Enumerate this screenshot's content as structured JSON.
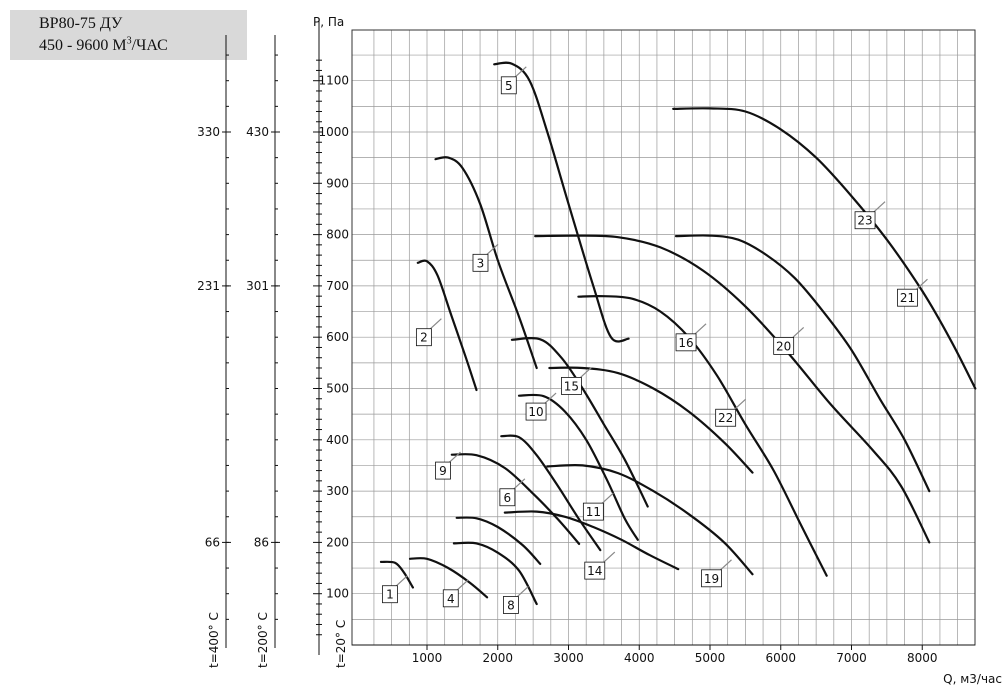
{
  "title_box": {
    "line1": "ВР80-75 ДУ",
    "line2_main": "450 - 9600 М",
    "line2_sup": "3",
    "line2_end": "/ЧАС"
  },
  "chart_data": {
    "type": "line",
    "ylabel": "P, Па",
    "xlabel": "Q, м3/час",
    "xlim": [
      0,
      8750
    ],
    "ylim": [
      0,
      1200
    ],
    "x_ticks": [
      1000,
      2000,
      3000,
      4000,
      5000,
      6000,
      7000,
      8000
    ],
    "y_ticks": [
      100,
      200,
      300,
      400,
      500,
      600,
      700,
      800,
      900,
      1000,
      1100
    ],
    "aux_axes": [
      {
        "label": "t=200° C",
        "ticks": [
          {
            "at": 200,
            "text": "86"
          },
          {
            "at": 700,
            "text": "301"
          },
          {
            "at": 1000,
            "text": "430"
          }
        ]
      },
      {
        "label": "t=400° C",
        "ticks": [
          {
            "at": 200,
            "text": "66"
          },
          {
            "at": 700,
            "text": "231"
          },
          {
            "at": 1000,
            "text": "330"
          }
        ]
      }
    ],
    "main_axis_label": "t=20° C",
    "grid": true,
    "series": [
      {
        "name": "1",
        "points": [
          [
            350,
            162
          ],
          [
            550,
            160
          ],
          [
            680,
            140
          ],
          [
            800,
            112
          ]
        ],
        "label_at": [
          370,
          99
        ]
      },
      {
        "name": "2",
        "points": [
          [
            870,
            745
          ],
          [
            1000,
            748
          ],
          [
            1150,
            720
          ],
          [
            1350,
            640
          ],
          [
            1550,
            560
          ],
          [
            1700,
            497
          ]
        ],
        "label_at": [
          850,
          600
        ]
      },
      {
        "name": "3",
        "points": [
          [
            1120,
            947
          ],
          [
            1300,
            950
          ],
          [
            1500,
            930
          ],
          [
            1750,
            860
          ],
          [
            2000,
            750
          ],
          [
            2300,
            640
          ],
          [
            2550,
            540
          ]
        ],
        "label_at": [
          1650,
          745
        ]
      },
      {
        "name": "4",
        "points": [
          [
            760,
            168
          ],
          [
            1000,
            168
          ],
          [
            1300,
            150
          ],
          [
            1600,
            122
          ],
          [
            1850,
            93
          ]
        ],
        "label_at": [
          1230,
          91
        ]
      },
      {
        "name": "5",
        "points": [
          [
            1950,
            1132
          ],
          [
            2200,
            1133
          ],
          [
            2450,
            1100
          ],
          [
            2700,
            1000
          ],
          [
            3000,
            860
          ],
          [
            3350,
            700
          ],
          [
            3600,
            600
          ],
          [
            3850,
            597
          ]
        ],
        "label_at": [
          2050,
          1091
        ]
      },
      {
        "name": "6",
        "points": [
          [
            1350,
            371
          ],
          [
            1700,
            370
          ],
          [
            2100,
            345
          ],
          [
            2500,
            295
          ],
          [
            2850,
            245
          ],
          [
            3150,
            197
          ]
        ],
        "label_at": [
          2030,
          288
        ]
      },
      {
        "name": "8",
        "points": [
          [
            1380,
            198
          ],
          [
            1700,
            198
          ],
          [
            2000,
            180
          ],
          [
            2300,
            145
          ],
          [
            2550,
            80
          ]
        ],
        "label_at": [
          2080,
          78
        ]
      },
      {
        "name": "9",
        "points": [
          [
            1420,
            248
          ],
          [
            1700,
            247
          ],
          [
            2000,
            230
          ],
          [
            2350,
            195
          ],
          [
            2600,
            158
          ]
        ],
        "label_at": [
          1120,
          340
        ]
      },
      {
        "name": "10",
        "points": [
          [
            2050,
            407
          ],
          [
            2300,
            405
          ],
          [
            2550,
            370
          ],
          [
            2850,
            310
          ],
          [
            3150,
            245
          ],
          [
            3450,
            185
          ]
        ],
        "label_at": [
          2400,
          455
        ]
      },
      {
        "name": "11",
        "points": [
          [
            2300,
            486
          ],
          [
            2650,
            485
          ],
          [
            2950,
            455
          ],
          [
            3250,
            400
          ],
          [
            3550,
            320
          ],
          [
            3800,
            245
          ],
          [
            3980,
            205
          ]
        ],
        "label_at": [
          3210,
          260
        ]
      },
      {
        "name": "14",
        "points": [
          [
            2100,
            258
          ],
          [
            2550,
            260
          ],
          [
            2950,
            250
          ],
          [
            3350,
            230
          ],
          [
            3750,
            205
          ],
          [
            4150,
            175
          ],
          [
            4550,
            148
          ]
        ],
        "label_at": [
          3230,
          145
        ]
      },
      {
        "name": "15",
        "points": [
          [
            2200,
            595
          ],
          [
            2600,
            596
          ],
          [
            2900,
            560
          ],
          [
            3200,
            500
          ],
          [
            3500,
            430
          ],
          [
            3800,
            360
          ],
          [
            4120,
            270
          ]
        ],
        "label_at": [
          2900,
          505
        ]
      },
      {
        "name": "16",
        "points": [
          [
            3140,
            679
          ],
          [
            3500,
            680
          ],
          [
            3900,
            675
          ],
          [
            4300,
            650
          ],
          [
            4700,
            600
          ],
          [
            5100,
            525
          ],
          [
            5500,
            430
          ],
          [
            5900,
            340
          ],
          [
            6300,
            230
          ],
          [
            6650,
            135
          ]
        ],
        "label_at": [
          4520,
          590
        ]
      },
      {
        "name": "19",
        "points": [
          [
            2700,
            348
          ],
          [
            3200,
            350
          ],
          [
            3700,
            335
          ],
          [
            4200,
            300
          ],
          [
            4700,
            255
          ],
          [
            5200,
            200
          ],
          [
            5600,
            138
          ]
        ],
        "label_at": [
          4880,
          130
        ]
      },
      {
        "name": "20",
        "points": [
          [
            2530,
            797
          ],
          [
            3100,
            798
          ],
          [
            3700,
            795
          ],
          [
            4300,
            775
          ],
          [
            4900,
            730
          ],
          [
            5500,
            660
          ],
          [
            6100,
            570
          ],
          [
            6700,
            470
          ],
          [
            7300,
            380
          ],
          [
            7700,
            310
          ],
          [
            8100,
            200
          ]
        ],
        "label_at": [
          5900,
          583
        ]
      },
      {
        "name": "21",
        "points": [
          [
            4520,
            797
          ],
          [
            5000,
            798
          ],
          [
            5400,
            790
          ],
          [
            5800,
            760
          ],
          [
            6200,
            715
          ],
          [
            6600,
            650
          ],
          [
            7000,
            575
          ],
          [
            7400,
            480
          ],
          [
            7750,
            400
          ],
          [
            8100,
            300
          ]
        ],
        "label_at": [
          7650,
          677
        ]
      },
      {
        "name": "22",
        "points": [
          [
            2730,
            540
          ],
          [
            3200,
            540
          ],
          [
            3700,
            530
          ],
          [
            4200,
            500
          ],
          [
            4700,
            455
          ],
          [
            5200,
            395
          ],
          [
            5600,
            336
          ]
        ],
        "label_at": [
          5080,
          443
        ]
      },
      {
        "name": "23",
        "points": [
          [
            4480,
            1045
          ],
          [
            5000,
            1046
          ],
          [
            5500,
            1040
          ],
          [
            6000,
            1005
          ],
          [
            6500,
            950
          ],
          [
            7000,
            875
          ],
          [
            7500,
            790
          ],
          [
            8000,
            690
          ],
          [
            8400,
            595
          ],
          [
            8750,
            500
          ]
        ],
        "label_at": [
          7050,
          828
        ]
      }
    ]
  }
}
